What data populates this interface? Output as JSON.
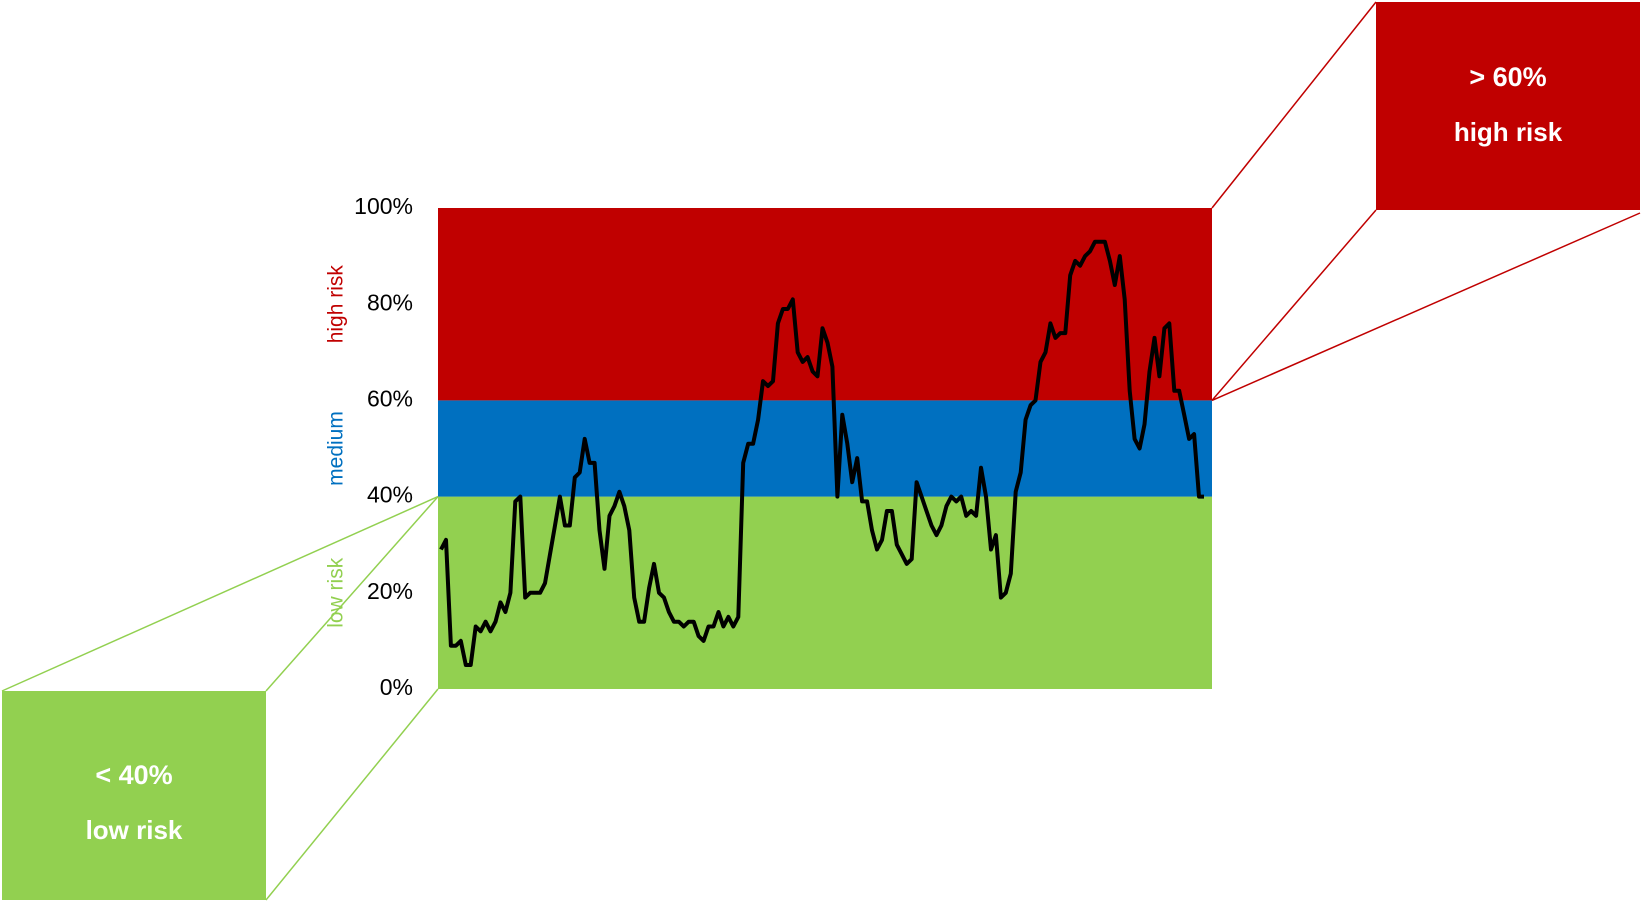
{
  "chart_data": {
    "type": "line",
    "ylim": [
      0,
      100
    ],
    "yticks": [
      {
        "value": 0,
        "label": "0%"
      },
      {
        "value": 20,
        "label": "20%"
      },
      {
        "value": 40,
        "label": "40%"
      },
      {
        "value": 60,
        "label": "60%"
      },
      {
        "value": 80,
        "label": "80%"
      },
      {
        "value": 100,
        "label": "100%"
      }
    ],
    "bands": [
      {
        "from": 0,
        "to": 40,
        "label": "low risk",
        "color": "#92d050"
      },
      {
        "from": 40,
        "to": 60,
        "label": "medium",
        "color": "#0070c0"
      },
      {
        "from": 60,
        "to": 100,
        "label": "high risk",
        "color": "#c00000"
      }
    ],
    "callouts": [
      {
        "text": "> 60%",
        "label": "high risk",
        "color": "#c00000"
      },
      {
        "text": "< 40%",
        "label": "low risk",
        "color": "#92d050"
      }
    ],
    "series": [
      {
        "color": "#000000",
        "values": [
          29,
          31,
          9,
          9,
          10,
          5,
          5,
          13,
          12,
          14,
          12,
          14,
          18,
          16,
          20,
          39,
          40,
          19,
          20,
          20,
          20,
          22,
          28,
          34,
          40,
          34,
          34,
          44,
          45,
          52,
          47,
          47,
          33,
          25,
          36,
          38,
          41,
          38,
          33,
          19,
          14,
          14,
          21,
          26,
          20,
          19,
          16,
          14,
          14,
          13,
          14,
          14,
          11,
          10,
          13,
          13,
          16,
          13,
          15,
          13,
          15,
          47,
          51,
          51,
          56,
          64,
          63,
          64,
          76,
          79,
          79,
          81,
          70,
          68,
          69,
          66,
          65,
          75,
          72,
          67,
          40,
          57,
          51,
          43,
          48,
          39,
          39,
          33,
          29,
          31,
          37,
          37,
          30,
          28,
          26,
          27,
          43,
          40,
          37,
          34,
          32,
          34,
          38,
          40,
          39,
          40,
          36,
          37,
          36,
          46,
          40,
          29,
          32,
          19,
          20,
          24,
          41,
          45,
          56,
          59,
          60,
          68,
          70,
          76,
          73,
          74,
          74,
          86,
          89,
          88,
          90,
          91,
          93,
          93,
          93,
          89,
          84,
          90,
          81,
          62,
          52,
          50,
          55,
          66,
          73,
          65,
          75,
          76,
          62,
          62,
          57,
          52,
          53,
          40,
          40
        ]
      }
    ]
  }
}
